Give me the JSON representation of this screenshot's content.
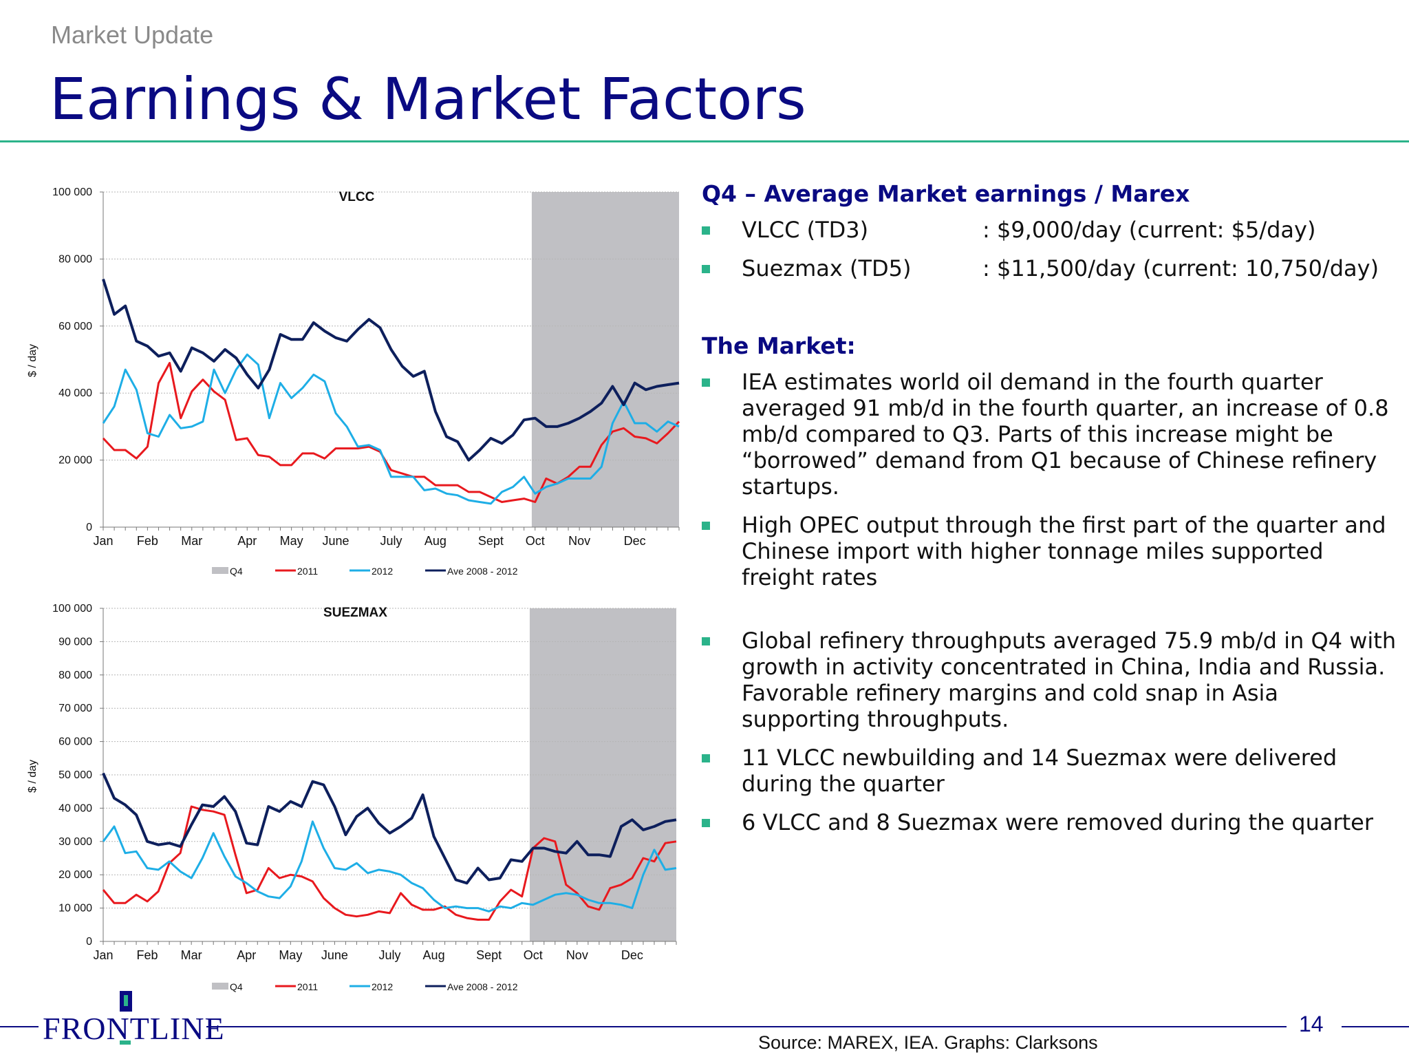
{
  "header": {
    "subtitle": "Market Update",
    "title": "Earnings & Market Factors"
  },
  "colors": {
    "q4": "#c0c0c4",
    "y2011": "#e8191e",
    "y2012": "#1eaee6",
    "ave": "#0d1f5c",
    "accent": "#2bb38a",
    "navy": "#0a0a82"
  },
  "chart_data": [
    {
      "type": "line",
      "title": "VLCC",
      "ylabel": "$ / day",
      "ylim": [
        0,
        100000
      ],
      "yticks": [
        0,
        20000,
        40000,
        60000,
        80000,
        100000
      ],
      "ytick_labels": [
        "0",
        "20 000",
        "40 000",
        "60 000",
        "80 000",
        "100 000"
      ],
      "x_range": [
        0,
        52
      ],
      "month_labels": [
        "Jan",
        "Feb",
        "Mar",
        "Apr",
        "May",
        "June",
        "July",
        "Aug",
        "Sept",
        "Oct",
        "Nov",
        "Dec"
      ],
      "month_positions": [
        0,
        4,
        8,
        13,
        17,
        21,
        26,
        30,
        35,
        39,
        43,
        48
      ],
      "q4_start": 38.7,
      "legend": [
        "Q4",
        "2011",
        "2012",
        "Ave 2008 - 2012"
      ],
      "series": [
        {
          "name": "2011",
          "values": [
            26500,
            23000,
            23000,
            20500,
            24000,
            43000,
            49000,
            32500,
            40500,
            44000,
            40500,
            38000,
            26000,
            26500,
            21500,
            21000,
            18500,
            18500,
            22000,
            22000,
            20500,
            23500,
            23500,
            23500,
            24000,
            22500,
            17000,
            16000,
            15000,
            15000,
            12500,
            12500,
            12500,
            10500,
            10500,
            9000,
            7500,
            8000,
            8500,
            7500,
            14500,
            13000,
            15000,
            18000,
            18000,
            24500,
            28500,
            29500,
            27000,
            26500,
            25000,
            28000,
            31500
          ]
        },
        {
          "name": "2012",
          "values": [
            31000,
            36000,
            47000,
            41000,
            28000,
            27000,
            33500,
            29500,
            30000,
            31500,
            47000,
            40000,
            47000,
            51500,
            48500,
            32500,
            43000,
            38500,
            41500,
            45500,
            43500,
            34000,
            30000,
            24000,
            24500,
            23000,
            15000,
            15000,
            15000,
            11000,
            11500,
            10000,
            9500,
            8000,
            7500,
            7000,
            10500,
            12000,
            15000,
            10000,
            12000,
            13000,
            14500,
            14500,
            14500,
            18000,
            31000,
            37500,
            31000,
            31000,
            28500,
            31500,
            30000
          ]
        },
        {
          "name": "Ave 2008 - 2012",
          "values": [
            74000,
            63500,
            66000,
            55500,
            54000,
            51000,
            52000,
            46500,
            53500,
            52000,
            49500,
            53000,
            50500,
            45500,
            41500,
            47000,
            57500,
            56000,
            56000,
            61000,
            58500,
            56500,
            55500,
            59000,
            62000,
            59500,
            53000,
            48000,
            45000,
            46500,
            34500,
            27000,
            25500,
            20000,
            23000,
            26500,
            25000,
            27500,
            32000,
            32500,
            30000,
            30000,
            31000,
            32500,
            34500,
            37000,
            42000,
            36500,
            43000,
            41000,
            42000,
            42500,
            43000
          ]
        }
      ]
    },
    {
      "type": "line",
      "title": "SUEZMAX",
      "ylabel": "$ / day",
      "ylim": [
        0,
        100000
      ],
      "yticks": [
        0,
        10000,
        20000,
        30000,
        40000,
        50000,
        60000,
        70000,
        80000,
        90000,
        100000
      ],
      "ytick_labels": [
        "0",
        "10 000",
        "20 000",
        "30 000",
        "40 000",
        "50 000",
        "60 000",
        "70 000",
        "80 000",
        "90 000",
        "100 000"
      ],
      "x_range": [
        0,
        52
      ],
      "month_labels": [
        "Jan",
        "Feb",
        "Mar",
        "Apr",
        "May",
        "June",
        "July",
        "Aug",
        "Sept",
        "Oct",
        "Nov",
        "Dec"
      ],
      "month_positions": [
        0,
        4,
        8,
        13,
        17,
        21,
        26,
        30,
        35,
        39,
        43,
        48
      ],
      "q4_start": 38.7,
      "legend": [
        "Q4",
        "2011",
        "2012",
        "Ave 2008 - 2012"
      ],
      "series": [
        {
          "name": "2011",
          "values": [
            15500,
            11500,
            11500,
            14000,
            12000,
            15000,
            23500,
            26500,
            40500,
            39500,
            39000,
            38000,
            26000,
            14500,
            15500,
            22000,
            19000,
            20000,
            19500,
            18000,
            13000,
            10000,
            8000,
            7500,
            8000,
            9000,
            8500,
            14500,
            11000,
            9500,
            9500,
            10500,
            8000,
            7000,
            6500,
            6500,
            12000,
            15500,
            13500,
            28000,
            31000,
            30000,
            17000,
            14500,
            10500,
            9500,
            16000,
            17000,
            19000,
            25000,
            24000,
            29500,
            30000
          ]
        },
        {
          "name": "2012",
          "values": [
            30000,
            34500,
            26500,
            27000,
            22000,
            21500,
            24000,
            21000,
            19000,
            25000,
            32500,
            25500,
            19500,
            17500,
            15000,
            13500,
            13000,
            16500,
            24000,
            36000,
            28000,
            22000,
            21500,
            23500,
            20500,
            21500,
            21000,
            20000,
            17500,
            16000,
            12500,
            10000,
            10500,
            10000,
            10000,
            9000,
            10500,
            10000,
            11500,
            11000,
            12500,
            14000,
            14500,
            14000,
            12500,
            11500,
            11500,
            11000,
            10000,
            20000,
            27500,
            21500,
            22000
          ]
        },
        {
          "name": "Ave 2008 - 2012",
          "values": [
            50500,
            43000,
            41000,
            38000,
            30000,
            29000,
            29500,
            28500,
            35000,
            41000,
            40500,
            43500,
            39000,
            29500,
            29000,
            40500,
            39000,
            42000,
            40500,
            48000,
            47000,
            40500,
            32000,
            37500,
            40000,
            35500,
            32500,
            34500,
            37000,
            44000,
            31500,
            25000,
            18500,
            17500,
            22000,
            18500,
            19000,
            24500,
            24000,
            28000,
            28000,
            27000,
            26500,
            30000,
            26000,
            26000,
            25500,
            34500,
            36500,
            33500,
            34500,
            36000,
            36500
          ]
        }
      ]
    }
  ],
  "right_panel": {
    "earnings_heading": "Q4 – Average Market earnings / Marex",
    "earnings": [
      {
        "label": "VLCC (TD3)",
        "value": ": $9,000/day (current: $5/day)"
      },
      {
        "label": "Suezmax (TD5)",
        "value": ": $11,500/day (current: 10,750/day)"
      }
    ],
    "market_heading": "The Market:",
    "market_bullets": [
      "IEA estimates world oil  demand in the fourth quarter averaged 91 mb/d in the fourth quarter, an increase of 0.8 mb/d compared to Q3. Parts of this increase might be “borrowed” demand from Q1 because of Chinese refinery startups.",
      "High OPEC output through the first part of the quarter and Chinese import with higher tonnage miles supported freight rates",
      "Global refinery throughputs averaged 75.9 mb/d in Q4 with growth in activity concentrated in China, India and Russia. Favorable refinery margins and cold snap in Asia supporting throughputs.",
      "11 VLCC newbuilding and 14 Suezmax were delivered during the quarter",
      "6 VLCC and 8 Suezmax were removed during the quarter"
    ]
  },
  "footer": {
    "logo_text": "FRONTLINE",
    "page_number": "14",
    "source": "Source: MAREX, IEA. Graphs: Clarksons"
  }
}
